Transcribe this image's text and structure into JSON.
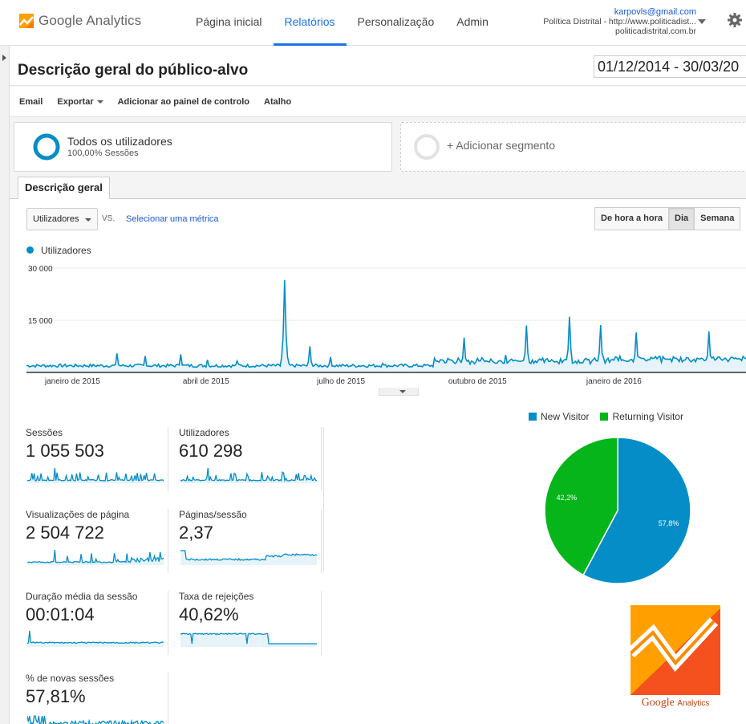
{
  "brand": {
    "logo_text": "Google Analytics",
    "orange": "#f57c00",
    "yellow": "#ffa000"
  },
  "nav": {
    "items": [
      {
        "label": "Página inicial"
      },
      {
        "label": "Relatórios"
      },
      {
        "label": "Personalização"
      },
      {
        "label": "Admin"
      }
    ],
    "active": "Relatórios"
  },
  "account": {
    "email": "karpovls@gmail.com",
    "property": "Política Distrital - http://www.politicadist...",
    "site": "politicadistrital.com.br"
  },
  "page": {
    "title": "Descrição geral do público-alvo",
    "date_range": "01/12/2014 - 30/03/20"
  },
  "actions": {
    "email": "Email",
    "export": "Exportar",
    "add_dashboard": "Adicionar ao painel de controlo",
    "shortcut": "Atalho"
  },
  "segments": {
    "current_title": "Todos os utilizadores",
    "current_sub": "100,00% Sessões",
    "add_label": "+ Adicionar segmento"
  },
  "tab": {
    "label": "Descrição geral"
  },
  "controls": {
    "metric": "Utilizadores",
    "vs": "VS.",
    "select_metric": "Selecionar uma métrica",
    "granularity": [
      "De hora a hora",
      "Dia",
      "Semana"
    ],
    "active_granularity": "Dia"
  },
  "chart_data": [
    {
      "type": "line",
      "series": [
        {
          "name": "Utilizadores",
          "color": "#058dc7"
        }
      ],
      "ylim": [
        0,
        30000
      ],
      "yticks": [
        "30 000",
        "15 000"
      ],
      "xticks": [
        "janeiro de 2015",
        "abril de 2015",
        "julho de 2015",
        "outubro de 2015",
        "janeiro de 2016"
      ],
      "peaks": [
        {
          "date": "2015-01-31",
          "value": 5500
        },
        {
          "date": "2015-02-19",
          "value": 4700
        },
        {
          "date": "2015-03-15",
          "value": 5200
        },
        {
          "date": "2015-04-02",
          "value": 3600
        },
        {
          "date": "2015-04-22",
          "value": 3300
        },
        {
          "date": "2015-05-24",
          "value": 26500
        },
        {
          "date": "2015-06-10",
          "value": 7500
        },
        {
          "date": "2015-06-24",
          "value": 4400
        },
        {
          "date": "2015-07-29",
          "value": 2600
        },
        {
          "date": "2015-09-22",
          "value": 10000
        },
        {
          "date": "2015-10-20",
          "value": 5000
        },
        {
          "date": "2015-11-03",
          "value": 13500
        },
        {
          "date": "2015-12-02",
          "value": 16000
        },
        {
          "date": "2015-12-23",
          "value": 13600
        },
        {
          "date": "2016-01-16",
          "value": 11500
        },
        {
          "date": "2016-03-05",
          "value": 11800
        }
      ],
      "baseline": 1500
    },
    {
      "type": "pie",
      "title": "",
      "slices": [
        {
          "label": "New Visitor",
          "value": 57.8,
          "display": "57,8%",
          "color": "#058dc7"
        },
        {
          "label": "Returning Visitor",
          "value": 42.2,
          "display": "42,2%",
          "color": "#06b51a"
        }
      ]
    }
  ],
  "kpis": [
    {
      "label": "Sessões",
      "value": "1 055 503"
    },
    {
      "label": "Utilizadores",
      "value": "610 298"
    },
    {
      "label": "Visualizações de página",
      "value": "2 504 722"
    },
    {
      "label": "Páginas/sessão",
      "value": "2,37"
    },
    {
      "label": "Duração média da sessão",
      "value": "00:01:04"
    },
    {
      "label": "Taxa de rejeições",
      "value": "40,62%"
    },
    {
      "label": "% de novas sessões",
      "value": "57,81%"
    }
  ],
  "watermark": {
    "word": "Google",
    "suffix": "Analytics"
  }
}
